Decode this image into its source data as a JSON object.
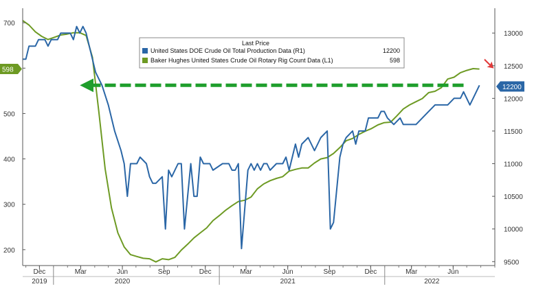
{
  "chart_data": {
    "type": "line",
    "legend": {
      "title": "Last Price",
      "placement": "top-center",
      "entries": [
        {
          "label": "United States DOE Crude Oil Total Production Data  (R1)",
          "last": "12200",
          "color": "#2a66a6"
        },
        {
          "label": "Baker Hughes United States Crude Oil Rotary Rig Count Data  (L1)",
          "last": "598",
          "color": "#6d9a23"
        }
      ]
    },
    "x_axis": {
      "start": "2019-10-25",
      "end": "2022-09-01",
      "months": [
        {
          "label": "Dec",
          "date": "2019-12-01"
        },
        {
          "label": "Mar",
          "date": "2020-03-01"
        },
        {
          "label": "Jun",
          "date": "2020-06-01"
        },
        {
          "label": "Sep",
          "date": "2020-09-01"
        },
        {
          "label": "Dec",
          "date": "2020-12-01"
        },
        {
          "label": "Mar",
          "date": "2021-03-01"
        },
        {
          "label": "Jun",
          "date": "2021-06-01"
        },
        {
          "label": "Sep",
          "date": "2021-09-01"
        },
        {
          "label": "Dec",
          "date": "2021-12-01"
        },
        {
          "label": "Mar",
          "date": "2022-03-01"
        },
        {
          "label": "Jun",
          "date": "2022-06-01"
        }
      ],
      "years": [
        {
          "label": "2019",
          "date": "2019-12-01"
        },
        {
          "label": "2020",
          "date": "2020-06-01"
        },
        {
          "label": "2021",
          "date": "2021-06-01"
        },
        {
          "label": "2022",
          "date": "2022-04-15"
        }
      ]
    },
    "y_left": {
      "ticks": [
        "200",
        "300",
        "400",
        "500",
        "600",
        "700"
      ],
      "ylim": [
        165,
        732
      ]
    },
    "y_right": {
      "ticks": [
        "9500",
        "10000",
        "10500",
        "11000",
        "11500",
        "12000",
        "12500",
        "13000"
      ],
      "ylim": [
        9440,
        13380
      ]
    },
    "flags": {
      "left": "598",
      "right": "12200"
    },
    "grid": false,
    "series": [
      {
        "name": "Baker Hughes United States Crude Oil Rotary Rig Count Data  (L1)",
        "axis": "left",
        "color": "#6d9a23",
        "points": [
          [
            "2019-10-25",
            705
          ],
          [
            "2019-11-08",
            695
          ],
          [
            "2019-11-22",
            680
          ],
          [
            "2019-12-06",
            670
          ],
          [
            "2019-12-20",
            663
          ],
          [
            "2020-01-03",
            668
          ],
          [
            "2020-01-17",
            673
          ],
          [
            "2020-01-31",
            675
          ],
          [
            "2020-02-14",
            678
          ],
          [
            "2020-02-28",
            678
          ],
          [
            "2020-03-13",
            672
          ],
          [
            "2020-03-27",
            624
          ],
          [
            "2020-04-10",
            504
          ],
          [
            "2020-04-24",
            378
          ],
          [
            "2020-05-08",
            292
          ],
          [
            "2020-05-22",
            237
          ],
          [
            "2020-06-05",
            206
          ],
          [
            "2020-06-19",
            189
          ],
          [
            "2020-07-03",
            185
          ],
          [
            "2020-07-17",
            181
          ],
          [
            "2020-07-31",
            180
          ],
          [
            "2020-08-14",
            173
          ],
          [
            "2020-08-28",
            180
          ],
          [
            "2020-09-11",
            178
          ],
          [
            "2020-09-25",
            183
          ],
          [
            "2020-10-09",
            199
          ],
          [
            "2020-10-23",
            212
          ],
          [
            "2020-11-06",
            226
          ],
          [
            "2020-11-20",
            237
          ],
          [
            "2020-12-04",
            248
          ],
          [
            "2020-12-18",
            264
          ],
          [
            "2021-01-01",
            275
          ],
          [
            "2021-01-15",
            287
          ],
          [
            "2021-01-29",
            297
          ],
          [
            "2021-02-12",
            306
          ],
          [
            "2021-02-26",
            309
          ],
          [
            "2021-03-12",
            316
          ],
          [
            "2021-03-26",
            334
          ],
          [
            "2021-04-09",
            345
          ],
          [
            "2021-04-23",
            352
          ],
          [
            "2021-05-07",
            357
          ],
          [
            "2021-05-21",
            361
          ],
          [
            "2021-06-04",
            373
          ],
          [
            "2021-06-18",
            377
          ],
          [
            "2021-07-02",
            380
          ],
          [
            "2021-07-16",
            380
          ],
          [
            "2021-07-30",
            391
          ],
          [
            "2021-08-13",
            400
          ],
          [
            "2021-08-27",
            403
          ],
          [
            "2021-09-10",
            412
          ],
          [
            "2021-09-24",
            425
          ],
          [
            "2021-10-08",
            440
          ],
          [
            "2021-10-22",
            445
          ],
          [
            "2021-11-05",
            454
          ],
          [
            "2021-11-19",
            461
          ],
          [
            "2021-12-03",
            467
          ],
          [
            "2021-12-17",
            475
          ],
          [
            "2021-12-31",
            480
          ],
          [
            "2022-01-14",
            481
          ],
          [
            "2022-01-28",
            495
          ],
          [
            "2022-02-11",
            510
          ],
          [
            "2022-02-25",
            519
          ],
          [
            "2022-03-11",
            526
          ],
          [
            "2022-03-25",
            533
          ],
          [
            "2022-04-08",
            546
          ],
          [
            "2022-04-22",
            549
          ],
          [
            "2022-05-06",
            557
          ],
          [
            "2022-05-20",
            576
          ],
          [
            "2022-06-03",
            580
          ],
          [
            "2022-06-17",
            590
          ],
          [
            "2022-07-01",
            595
          ],
          [
            "2022-07-15",
            599
          ],
          [
            "2022-07-29",
            598
          ]
        ]
      },
      {
        "name": "United States DOE Crude Oil Total Production Data  (R1)",
        "axis": "right",
        "color": "#2a66a6",
        "points": [
          [
            "2019-10-25",
            12600
          ],
          [
            "2019-11-01",
            12600
          ],
          [
            "2019-11-08",
            12800
          ],
          [
            "2019-11-22",
            12800
          ],
          [
            "2019-11-29",
            12900
          ],
          [
            "2019-12-13",
            12900
          ],
          [
            "2019-12-20",
            12800
          ],
          [
            "2019-12-27",
            12900
          ],
          [
            "2020-01-10",
            12900
          ],
          [
            "2020-01-17",
            13000
          ],
          [
            "2020-02-07",
            13000
          ],
          [
            "2020-02-14",
            12900
          ],
          [
            "2020-02-21",
            13100
          ],
          [
            "2020-02-28",
            13000
          ],
          [
            "2020-03-06",
            13100
          ],
          [
            "2020-03-13",
            13000
          ],
          [
            "2020-03-20",
            12800
          ],
          [
            "2020-04-03",
            12400
          ],
          [
            "2020-04-17",
            12200
          ],
          [
            "2020-05-01",
            11900
          ],
          [
            "2020-05-15",
            11500
          ],
          [
            "2020-05-29",
            11200
          ],
          [
            "2020-06-05",
            11000
          ],
          [
            "2020-06-12",
            10500
          ],
          [
            "2020-06-19",
            11000
          ],
          [
            "2020-07-03",
            11000
          ],
          [
            "2020-07-10",
            11100
          ],
          [
            "2020-07-24",
            11000
          ],
          [
            "2020-07-31",
            10800
          ],
          [
            "2020-08-07",
            10700
          ],
          [
            "2020-08-14",
            10700
          ],
          [
            "2020-08-28",
            10800
          ],
          [
            "2020-09-04",
            10000
          ],
          [
            "2020-09-11",
            10900
          ],
          [
            "2020-09-18",
            10800
          ],
          [
            "2020-09-25",
            10900
          ],
          [
            "2020-10-02",
            11000
          ],
          [
            "2020-10-09",
            11000
          ],
          [
            "2020-10-16",
            10000
          ],
          [
            "2020-10-23",
            10500
          ],
          [
            "2020-10-30",
            11000
          ],
          [
            "2020-11-06",
            10500
          ],
          [
            "2020-11-13",
            10500
          ],
          [
            "2020-11-20",
            11100
          ],
          [
            "2020-11-27",
            11000
          ],
          [
            "2020-12-11",
            11000
          ],
          [
            "2020-12-18",
            10900
          ],
          [
            "2021-01-08",
            11000
          ],
          [
            "2021-01-22",
            11000
          ],
          [
            "2021-01-29",
            10900
          ],
          [
            "2021-02-05",
            10900
          ],
          [
            "2021-02-12",
            11000
          ],
          [
            "2021-02-19",
            9700
          ],
          [
            "2021-03-05",
            10900
          ],
          [
            "2021-03-12",
            11000
          ],
          [
            "2021-03-19",
            10900
          ],
          [
            "2021-03-26",
            11000
          ],
          [
            "2021-04-02",
            10900
          ],
          [
            "2021-04-09",
            11000
          ],
          [
            "2021-04-16",
            11000
          ],
          [
            "2021-04-23",
            10900
          ],
          [
            "2021-05-07",
            11000
          ],
          [
            "2021-05-21",
            11000
          ],
          [
            "2021-05-28",
            11100
          ],
          [
            "2021-06-04",
            10900
          ],
          [
            "2021-06-11",
            11100
          ],
          [
            "2021-06-18",
            11300
          ],
          [
            "2021-06-25",
            11100
          ],
          [
            "2021-07-02",
            11300
          ],
          [
            "2021-07-16",
            11400
          ],
          [
            "2021-07-30",
            11200
          ],
          [
            "2021-08-13",
            11400
          ],
          [
            "2021-08-27",
            11500
          ],
          [
            "2021-09-03",
            10000
          ],
          [
            "2021-09-10",
            10100
          ],
          [
            "2021-09-17",
            10600
          ],
          [
            "2021-09-24",
            11100
          ],
          [
            "2021-10-01",
            11300
          ],
          [
            "2021-10-08",
            11400
          ],
          [
            "2021-10-22",
            11500
          ],
          [
            "2021-10-29",
            11300
          ],
          [
            "2021-11-05",
            11500
          ],
          [
            "2021-11-19",
            11500
          ],
          [
            "2021-11-26",
            11700
          ],
          [
            "2021-12-03",
            11700
          ],
          [
            "2021-12-17",
            11700
          ],
          [
            "2021-12-24",
            11800
          ],
          [
            "2021-12-31",
            11800
          ],
          [
            "2022-01-07",
            11700
          ],
          [
            "2022-01-21",
            11600
          ],
          [
            "2022-02-04",
            11700
          ],
          [
            "2022-02-11",
            11600
          ],
          [
            "2022-02-25",
            11600
          ],
          [
            "2022-03-11",
            11600
          ],
          [
            "2022-03-25",
            11700
          ],
          [
            "2022-04-08",
            11800
          ],
          [
            "2022-04-22",
            11900
          ],
          [
            "2022-05-06",
            11900
          ],
          [
            "2022-05-20",
            11900
          ],
          [
            "2022-06-03",
            12000
          ],
          [
            "2022-06-17",
            12000
          ],
          [
            "2022-06-24",
            12100
          ],
          [
            "2022-07-08",
            11900
          ],
          [
            "2022-07-15",
            12000
          ],
          [
            "2022-07-22",
            12100
          ],
          [
            "2022-07-29",
            12200
          ]
        ]
      }
    ],
    "annotations": [
      {
        "kind": "dashed-arrow",
        "color": "#1f9e2c",
        "from_date": "2022-06-24",
        "to_date": "2020-03-22",
        "value": 12200,
        "axis": "right"
      },
      {
        "kind": "arrow-marker",
        "color": "#e23b3b",
        "date": "2022-08-19",
        "value": 598,
        "axis": "left"
      }
    ]
  }
}
